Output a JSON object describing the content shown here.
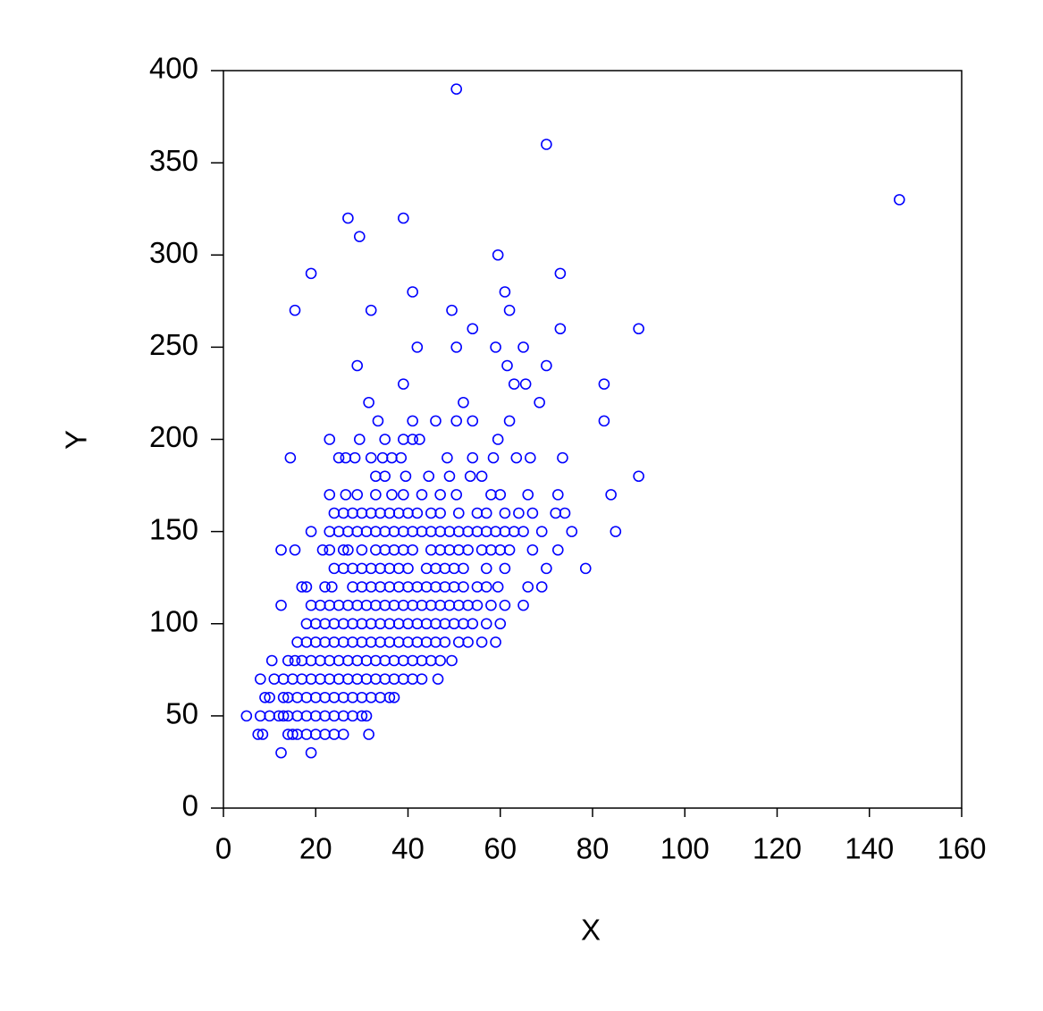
{
  "chart_data": {
    "type": "scatter",
    "xlabel": "X",
    "ylabel": "Y",
    "color": "#0000ff",
    "xlim": [
      0,
      160
    ],
    "xticks": [
      0,
      20,
      40,
      60,
      80,
      100,
      120,
      140,
      160
    ],
    "ylim": [
      0,
      400
    ],
    "yticks": [
      0,
      50,
      100,
      150,
      200,
      250,
      300,
      350,
      400
    ],
    "x": [
      50.5,
      70,
      146.5,
      27,
      39,
      29.5,
      19,
      59.5,
      73,
      15.5,
      32,
      41,
      49.5,
      61,
      62,
      90,
      54,
      73,
      42,
      50.5,
      59,
      65,
      29,
      61.5,
      70,
      31.5,
      39,
      52,
      63,
      65.5,
      68.5,
      82.5,
      82.5,
      33.5,
      41,
      46,
      50.5,
      54,
      62,
      23,
      29.5,
      35,
      39,
      41,
      42.5,
      59.5,
      14.5,
      25,
      26.5,
      28.5,
      32,
      34.5,
      36.5,
      38.5,
      48.5,
      54,
      58.5,
      63.5,
      66.5,
      73.5,
      33,
      35,
      39.5,
      44.5,
      49,
      53.5,
      56,
      90,
      23,
      26.5,
      29,
      33,
      36.5,
      39,
      43,
      47,
      50.5,
      58,
      60,
      66,
      72.5,
      84,
      24,
      26,
      28,
      30,
      32,
      34,
      36,
      38,
      40,
      42,
      45,
      47,
      51,
      55,
      57,
      61,
      64,
      67,
      72,
      74,
      19,
      23,
      25,
      27,
      29,
      31,
      33,
      35,
      37,
      39,
      41,
      43,
      45,
      47,
      49,
      51,
      53,
      55,
      57,
      59,
      61,
      63,
      65,
      69,
      75.5,
      85,
      12.5,
      15.5,
      21.5,
      23,
      26,
      27,
      30,
      33,
      35,
      37,
      39,
      41,
      45,
      47,
      49,
      51,
      53,
      56,
      58,
      60,
      62,
      67,
      72.5,
      24,
      26,
      28,
      30,
      32,
      34,
      36,
      38,
      40,
      44,
      46,
      48,
      50,
      52,
      57,
      61,
      70,
      78.5,
      17,
      18,
      22,
      23.5,
      28,
      30,
      32,
      34,
      36,
      38,
      40,
      42,
      44,
      46,
      48,
      50,
      52,
      55,
      57,
      59.5,
      66,
      69,
      12.5,
      19,
      21,
      23,
      25,
      27,
      29,
      31,
      33,
      35,
      37,
      39,
      41,
      43,
      45,
      47,
      49,
      51,
      53,
      55,
      58,
      61,
      65,
      18,
      20,
      22,
      24,
      26,
      28,
      30,
      32,
      34,
      36,
      38,
      40,
      42,
      44,
      46,
      48,
      50,
      52,
      54,
      57,
      60,
      16,
      18,
      20,
      22,
      24,
      26,
      28,
      30,
      32,
      34,
      36,
      38,
      40,
      42,
      44,
      46,
      48,
      51,
      53,
      56,
      59,
      10.5,
      14,
      15.5,
      17,
      19,
      21,
      23,
      25,
      27,
      29,
      31,
      33,
      35,
      37,
      39,
      41,
      43,
      45,
      47,
      49.5,
      8,
      11,
      13,
      15,
      17,
      19,
      21,
      23,
      25,
      27,
      29,
      31,
      33,
      35,
      37,
      39,
      41,
      43,
      46.5,
      9,
      10,
      13,
      14,
      16,
      18,
      20,
      22,
      24,
      26,
      28,
      30,
      32,
      34,
      36,
      37,
      5,
      8,
      10,
      12,
      13,
      14,
      16,
      18,
      20,
      22,
      24,
      26,
      28,
      30,
      31,
      7.5,
      8.5,
      14,
      15,
      16,
      18,
      20,
      22,
      24,
      26,
      31.5,
      12.5,
      19
    ],
    "values": [
      390,
      360,
      330,
      320,
      320,
      310,
      290,
      300,
      290,
      270,
      270,
      280,
      270,
      280,
      270,
      260,
      260,
      260,
      250,
      250,
      250,
      250,
      240,
      240,
      240,
      220,
      230,
      220,
      230,
      230,
      220,
      230,
      210,
      210,
      210,
      210,
      210,
      210,
      210,
      200,
      200,
      200,
      200,
      200,
      200,
      200,
      190,
      190,
      190,
      190,
      190,
      190,
      190,
      190,
      190,
      190,
      190,
      190,
      190,
      190,
      180,
      180,
      180,
      180,
      180,
      180,
      180,
      180,
      170,
      170,
      170,
      170,
      170,
      170,
      170,
      170,
      170,
      170,
      170,
      170,
      170,
      170,
      160,
      160,
      160,
      160,
      160,
      160,
      160,
      160,
      160,
      160,
      160,
      160,
      160,
      160,
      160,
      160,
      160,
      160,
      160,
      160,
      150,
      150,
      150,
      150,
      150,
      150,
      150,
      150,
      150,
      150,
      150,
      150,
      150,
      150,
      150,
      150,
      150,
      150,
      150,
      150,
      150,
      150,
      150,
      150,
      150,
      150,
      140,
      140,
      140,
      140,
      140,
      140,
      140,
      140,
      140,
      140,
      140,
      140,
      140,
      140,
      140,
      140,
      140,
      140,
      140,
      140,
      140,
      140,
      140,
      130,
      130,
      130,
      130,
      130,
      130,
      130,
      130,
      130,
      130,
      130,
      130,
      130,
      130,
      130,
      130,
      130,
      130,
      120,
      120,
      120,
      120,
      120,
      120,
      120,
      120,
      120,
      120,
      120,
      120,
      120,
      120,
      120,
      120,
      120,
      120,
      120,
      120,
      120,
      120,
      110,
      110,
      110,
      110,
      110,
      110,
      110,
      110,
      110,
      110,
      110,
      110,
      110,
      110,
      110,
      110,
      110,
      110,
      110,
      110,
      110,
      110,
      110,
      100,
      100,
      100,
      100,
      100,
      100,
      100,
      100,
      100,
      100,
      100,
      100,
      100,
      100,
      100,
      100,
      100,
      100,
      100,
      100,
      100,
      90,
      90,
      90,
      90,
      90,
      90,
      90,
      90,
      90,
      90,
      90,
      90,
      90,
      90,
      90,
      90,
      90,
      90,
      90,
      90,
      90,
      80,
      80,
      80,
      80,
      80,
      80,
      80,
      80,
      80,
      80,
      80,
      80,
      80,
      80,
      80,
      80,
      80,
      80,
      80,
      80,
      70,
      70,
      70,
      70,
      70,
      70,
      70,
      70,
      70,
      70,
      70,
      70,
      70,
      70,
      70,
      70,
      70,
      70,
      70,
      60,
      60,
      60,
      60,
      60,
      60,
      60,
      60,
      60,
      60,
      60,
      60,
      60,
      60,
      60,
      60,
      50,
      50,
      50,
      50,
      50,
      50,
      50,
      50,
      50,
      50,
      50,
      50,
      50,
      50,
      50,
      40,
      40,
      40,
      40,
      40,
      40,
      40,
      40,
      40,
      40,
      40,
      30,
      30
    ]
  }
}
